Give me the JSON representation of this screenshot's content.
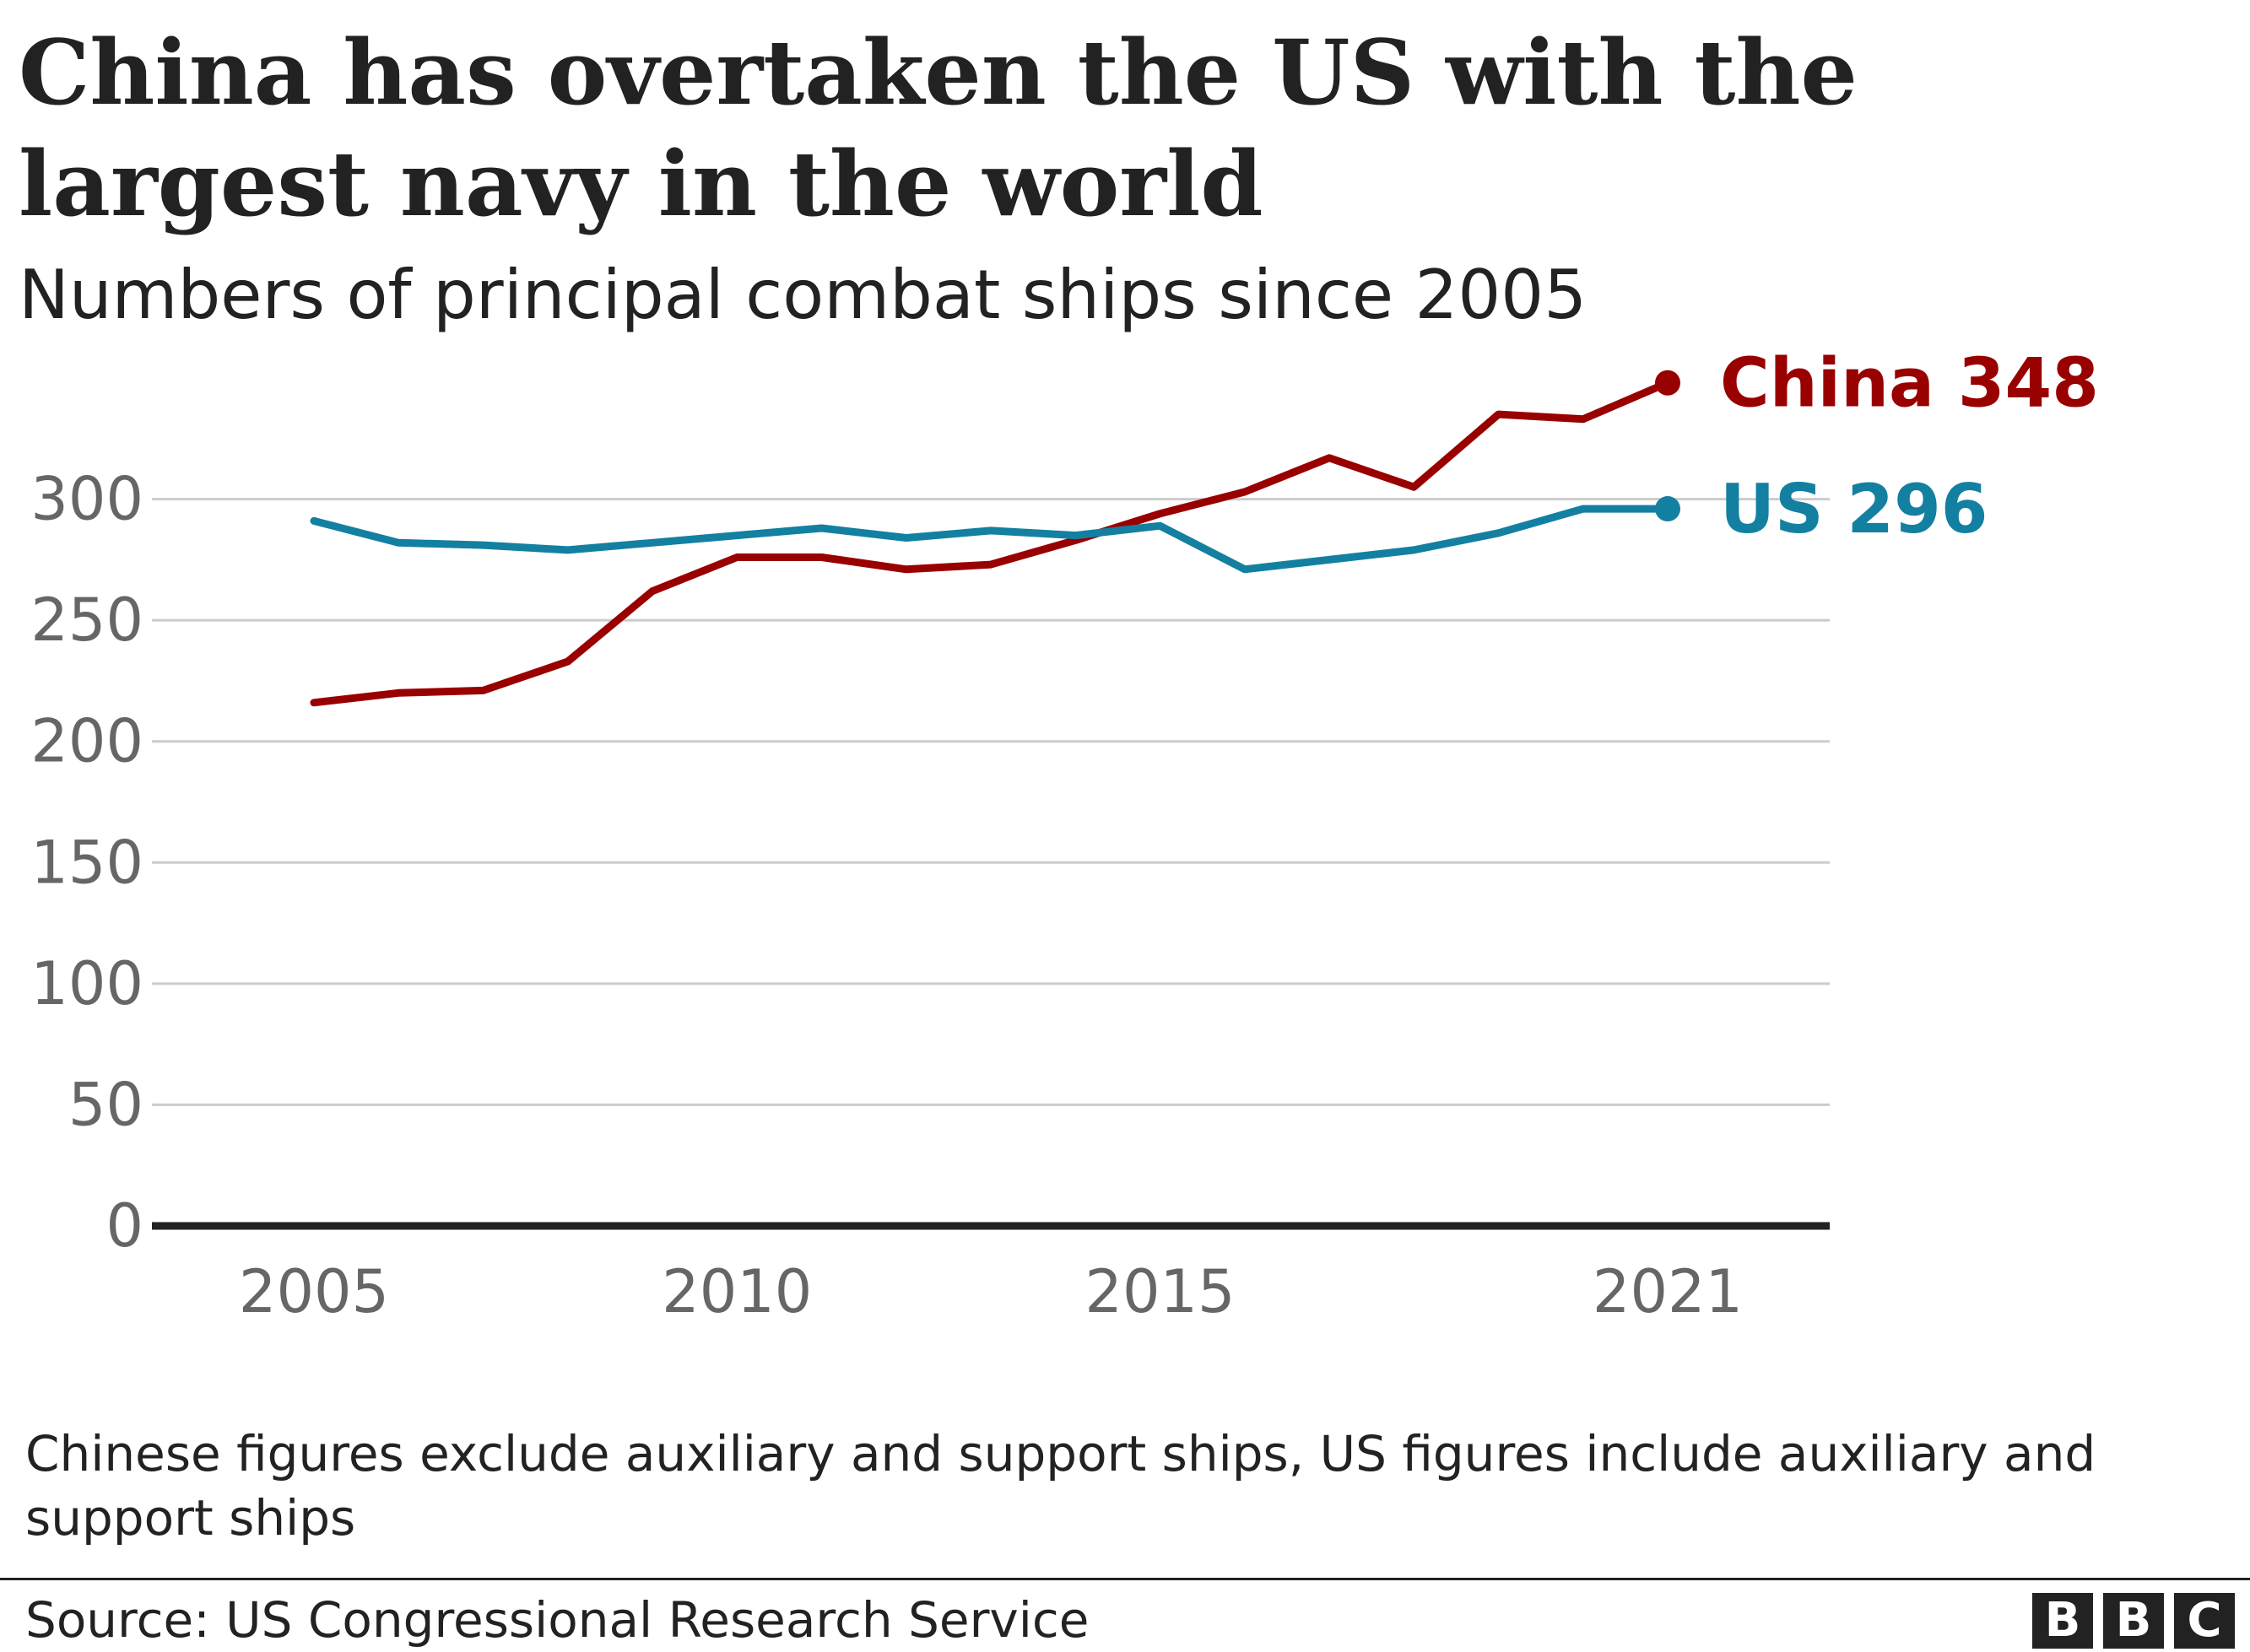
{
  "chart_data": {
    "type": "line",
    "title": "China has overtaken the US with the largest navy in the world",
    "subtitle": "Numbers of principal combat ships since 2005",
    "xlabel": "",
    "ylabel": "",
    "x": [
      2005,
      2006,
      2007,
      2008,
      2009,
      2010,
      2011,
      2012,
      2013,
      2014,
      2015,
      2016,
      2017,
      2018,
      2019,
      2020,
      2021
    ],
    "xticks": [
      "2005",
      "2010",
      "2015",
      "2021"
    ],
    "yticks": [
      "0",
      "50",
      "100",
      "150",
      "200",
      "250",
      "300"
    ],
    "ylim": [
      0,
      350
    ],
    "xlim": [
      2005,
      2021
    ],
    "grid": true,
    "series": [
      {
        "name": "China",
        "label": "China 348",
        "color": "#990000",
        "values": [
          216,
          220,
          221,
          233,
          262,
          276,
          276,
          271,
          273,
          283,
          294,
          303,
          317,
          305,
          335,
          333,
          348
        ]
      },
      {
        "name": "US",
        "label": "US 296",
        "color": "#1380a1",
        "values": [
          291,
          282,
          281,
          279,
          282,
          285,
          288,
          284,
          287,
          285,
          289,
          271,
          275,
          279,
          286,
          296,
          296
        ]
      }
    ]
  },
  "note": "Chinese figures exclude auxiliary and support ships, US figures include auxiliary and support ships",
  "source": "Source: US Congressional Research Service",
  "logo": [
    "B",
    "B",
    "C"
  ]
}
